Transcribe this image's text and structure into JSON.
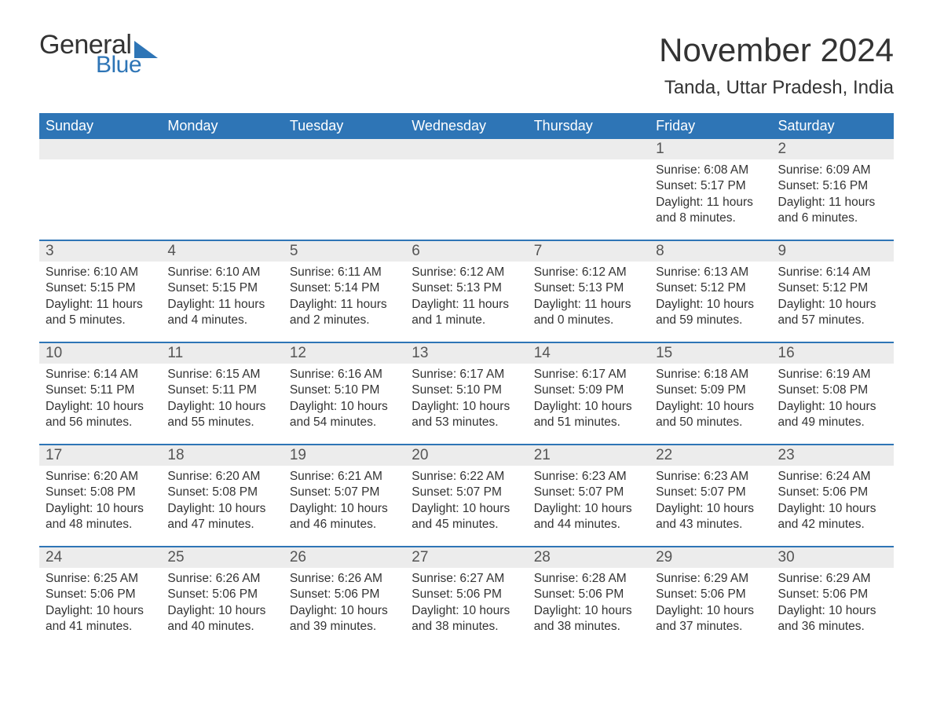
{
  "brand": {
    "word1": "General",
    "word2": "Blue",
    "word1_color": "#333333",
    "word2_color": "#2e75b6"
  },
  "title": "November 2024",
  "location": "Tanda, Uttar Pradesh, India",
  "colors": {
    "header_bg": "#2e75b6",
    "header_text": "#ffffff",
    "daynum_bg": "#ececec",
    "row_border": "#2e75b6",
    "body_text": "#333333",
    "page_bg": "#ffffff"
  },
  "font": {
    "family": "Arial",
    "title_size_pt": 32,
    "location_size_pt": 18,
    "dow_size_pt": 14,
    "body_size_pt": 12
  },
  "days_of_week": [
    "Sunday",
    "Monday",
    "Tuesday",
    "Wednesday",
    "Thursday",
    "Friday",
    "Saturday"
  ],
  "weeks": [
    [
      {
        "empty": true
      },
      {
        "empty": true
      },
      {
        "empty": true
      },
      {
        "empty": true
      },
      {
        "empty": true
      },
      {
        "num": "1",
        "sunrise": "6:08 AM",
        "sunset": "5:17 PM",
        "daylight": "11 hours and 8 minutes."
      },
      {
        "num": "2",
        "sunrise": "6:09 AM",
        "sunset": "5:16 PM",
        "daylight": "11 hours and 6 minutes."
      }
    ],
    [
      {
        "num": "3",
        "sunrise": "6:10 AM",
        "sunset": "5:15 PM",
        "daylight": "11 hours and 5 minutes."
      },
      {
        "num": "4",
        "sunrise": "6:10 AM",
        "sunset": "5:15 PM",
        "daylight": "11 hours and 4 minutes."
      },
      {
        "num": "5",
        "sunrise": "6:11 AM",
        "sunset": "5:14 PM",
        "daylight": "11 hours and 2 minutes."
      },
      {
        "num": "6",
        "sunrise": "6:12 AM",
        "sunset": "5:13 PM",
        "daylight": "11 hours and 1 minute."
      },
      {
        "num": "7",
        "sunrise": "6:12 AM",
        "sunset": "5:13 PM",
        "daylight": "11 hours and 0 minutes."
      },
      {
        "num": "8",
        "sunrise": "6:13 AM",
        "sunset": "5:12 PM",
        "daylight": "10 hours and 59 minutes."
      },
      {
        "num": "9",
        "sunrise": "6:14 AM",
        "sunset": "5:12 PM",
        "daylight": "10 hours and 57 minutes."
      }
    ],
    [
      {
        "num": "10",
        "sunrise": "6:14 AM",
        "sunset": "5:11 PM",
        "daylight": "10 hours and 56 minutes."
      },
      {
        "num": "11",
        "sunrise": "6:15 AM",
        "sunset": "5:11 PM",
        "daylight": "10 hours and 55 minutes."
      },
      {
        "num": "12",
        "sunrise": "6:16 AM",
        "sunset": "5:10 PM",
        "daylight": "10 hours and 54 minutes."
      },
      {
        "num": "13",
        "sunrise": "6:17 AM",
        "sunset": "5:10 PM",
        "daylight": "10 hours and 53 minutes."
      },
      {
        "num": "14",
        "sunrise": "6:17 AM",
        "sunset": "5:09 PM",
        "daylight": "10 hours and 51 minutes."
      },
      {
        "num": "15",
        "sunrise": "6:18 AM",
        "sunset": "5:09 PM",
        "daylight": "10 hours and 50 minutes."
      },
      {
        "num": "16",
        "sunrise": "6:19 AM",
        "sunset": "5:08 PM",
        "daylight": "10 hours and 49 minutes."
      }
    ],
    [
      {
        "num": "17",
        "sunrise": "6:20 AM",
        "sunset": "5:08 PM",
        "daylight": "10 hours and 48 minutes."
      },
      {
        "num": "18",
        "sunrise": "6:20 AM",
        "sunset": "5:08 PM",
        "daylight": "10 hours and 47 minutes."
      },
      {
        "num": "19",
        "sunrise": "6:21 AM",
        "sunset": "5:07 PM",
        "daylight": "10 hours and 46 minutes."
      },
      {
        "num": "20",
        "sunrise": "6:22 AM",
        "sunset": "5:07 PM",
        "daylight": "10 hours and 45 minutes."
      },
      {
        "num": "21",
        "sunrise": "6:23 AM",
        "sunset": "5:07 PM",
        "daylight": "10 hours and 44 minutes."
      },
      {
        "num": "22",
        "sunrise": "6:23 AM",
        "sunset": "5:07 PM",
        "daylight": "10 hours and 43 minutes."
      },
      {
        "num": "23",
        "sunrise": "6:24 AM",
        "sunset": "5:06 PM",
        "daylight": "10 hours and 42 minutes."
      }
    ],
    [
      {
        "num": "24",
        "sunrise": "6:25 AM",
        "sunset": "5:06 PM",
        "daylight": "10 hours and 41 minutes."
      },
      {
        "num": "25",
        "sunrise": "6:26 AM",
        "sunset": "5:06 PM",
        "daylight": "10 hours and 40 minutes."
      },
      {
        "num": "26",
        "sunrise": "6:26 AM",
        "sunset": "5:06 PM",
        "daylight": "10 hours and 39 minutes."
      },
      {
        "num": "27",
        "sunrise": "6:27 AM",
        "sunset": "5:06 PM",
        "daylight": "10 hours and 38 minutes."
      },
      {
        "num": "28",
        "sunrise": "6:28 AM",
        "sunset": "5:06 PM",
        "daylight": "10 hours and 38 minutes."
      },
      {
        "num": "29",
        "sunrise": "6:29 AM",
        "sunset": "5:06 PM",
        "daylight": "10 hours and 37 minutes."
      },
      {
        "num": "30",
        "sunrise": "6:29 AM",
        "sunset": "5:06 PM",
        "daylight": "10 hours and 36 minutes."
      }
    ]
  ],
  "labels": {
    "sunrise": "Sunrise:",
    "sunset": "Sunset:",
    "daylight": "Daylight:"
  }
}
